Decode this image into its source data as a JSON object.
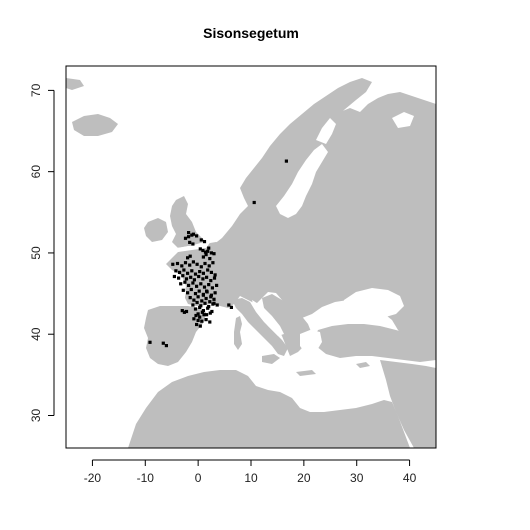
{
  "figure": {
    "title": "Sisonsegetum",
    "species_points_color": "#000000",
    "land_color": "#bebebe",
    "sea_color": "#ffffff"
  },
  "chart_data": {
    "type": "scatter",
    "title": "Sisonsegetum",
    "xlabel": "",
    "ylabel": "",
    "xlim": [
      -25,
      45
    ],
    "ylim": [
      26,
      73
    ],
    "x_ticks": [
      -20,
      -10,
      0,
      10,
      20,
      30,
      40
    ],
    "y_ticks": [
      30,
      40,
      50,
      60,
      70
    ],
    "grid": false,
    "series": [
      {
        "x": [
          -4.8,
          -3.9,
          -3.1,
          -2.4,
          -1.6,
          -0.9,
          -0.2,
          0.6,
          1.3,
          2.1,
          2.8,
          -4.2,
          -3.5,
          -2.7,
          -2.0,
          -1.2,
          -0.5,
          0.3,
          1.0,
          1.8,
          2.5,
          3.2,
          -4.5,
          -3.7,
          -2.9,
          -2.2,
          -1.4,
          -0.7,
          0.1,
          0.9,
          1.6,
          2.4,
          3.1,
          -3.3,
          -2.5,
          -1.8,
          -1.0,
          -0.3,
          0.5,
          1.2,
          2.0,
          2.7,
          3.5,
          -2.8,
          -2.0,
          -1.3,
          -0.5,
          0.2,
          1.0,
          1.7,
          2.5,
          3.2,
          -1.5,
          -0.8,
          0.0,
          0.7,
          1.5,
          2.2,
          3.0,
          -1.0,
          -0.2,
          0.5,
          1.3,
          2.0,
          2.8,
          -0.5,
          0.3,
          1.0,
          1.8,
          2.6,
          0.0,
          0.8,
          1.6,
          2.3,
          -2.0,
          -1.5,
          1.0,
          1.5,
          2.2,
          1.4,
          0.9,
          0.4,
          1.8,
          2.5,
          3.0,
          2.0,
          0.6,
          1.2,
          -3.0,
          -2.6,
          -2.2,
          -0.4,
          0.3,
          1.1,
          -0.8,
          0.0,
          0.7,
          1.5,
          2.2,
          3.0,
          3.6,
          1.0,
          1.6,
          2.4,
          -1.6,
          -1.0,
          5.8,
          6.3,
          -2.4,
          -1.8,
          -6.6,
          -6.0,
          -0.9,
          -0.3,
          -9.1,
          16.7,
          10.6,
          -0.3,
          0.4,
          -1.8,
          -1.2
        ],
        "y": [
          48.6,
          48.7,
          48.4,
          48.8,
          48.5,
          48.9,
          48.6,
          48.3,
          48.7,
          48.4,
          48.8,
          47.8,
          47.6,
          47.9,
          47.5,
          47.8,
          47.4,
          47.7,
          47.5,
          47.9,
          47.6,
          47.3,
          47.1,
          46.9,
          47.2,
          46.8,
          47.0,
          46.7,
          47.1,
          46.8,
          47.0,
          46.6,
          46.9,
          46.2,
          46.4,
          46.0,
          46.3,
          45.9,
          46.2,
          45.8,
          46.1,
          45.7,
          46.0,
          45.4,
          45.1,
          45.5,
          45.0,
          45.3,
          44.9,
          45.2,
          44.8,
          45.1,
          44.5,
          44.2,
          44.6,
          44.1,
          44.4,
          44.0,
          44.3,
          43.6,
          43.9,
          43.5,
          43.8,
          43.4,
          43.7,
          43.1,
          43.3,
          42.9,
          43.2,
          42.8,
          42.5,
          42.7,
          42.4,
          42.6,
          49.4,
          49.6,
          49.5,
          49.8,
          49.3,
          50.1,
          50.3,
          50.5,
          50.2,
          50.0,
          49.9,
          50.6,
          51.6,
          51.4,
          42.9,
          42.7,
          42.8,
          42.3,
          42.1,
          42.4,
          41.9,
          41.7,
          41.6,
          41.8,
          41.5,
          43.8,
          43.6,
          44.8,
          45.3,
          44.6,
          51.3,
          51.1,
          43.6,
          43.3,
          51.8,
          52.0,
          38.9,
          38.6,
          52.3,
          52.1,
          39.0,
          61.3,
          56.2,
          41.2,
          41.0,
          52.5,
          52.2
        ]
      }
    ]
  }
}
